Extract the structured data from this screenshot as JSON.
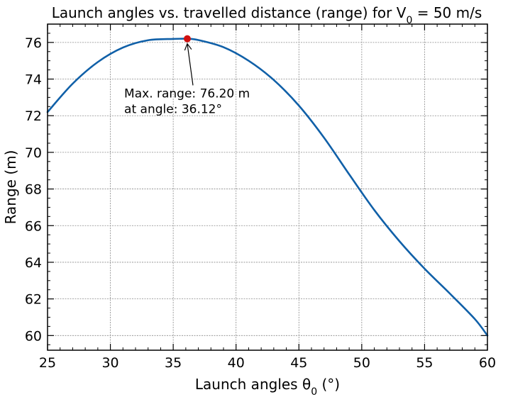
{
  "chart_data": {
    "type": "line",
    "title": "Launch angles vs. travelled distance (range) for V",
    "title_sub": "0",
    "title_tail": " = 50 m/s",
    "xlabel": "Launch angles θ",
    "xlabel_sub": "0",
    "xlabel_tail": " (°)",
    "ylabel": "Range (m)",
    "xlim": [
      25,
      60
    ],
    "ylim": [
      59.2,
      77.0
    ],
    "x_ticks": [
      25,
      30,
      35,
      40,
      45,
      50,
      55,
      60
    ],
    "y_ticks": [
      60,
      62,
      64,
      66,
      68,
      70,
      72,
      74,
      76
    ],
    "grid": true,
    "series": [
      {
        "color": "#1060a8",
        "x": [
          25,
          27,
          29,
          31,
          33,
          35,
          36.12,
          37,
          39,
          41,
          43,
          45,
          47,
          49,
          51,
          53,
          55,
          57,
          59,
          60
        ],
        "y": [
          72.2,
          73.75,
          74.93,
          75.72,
          76.12,
          76.19,
          76.2,
          76.13,
          75.74,
          75.0,
          73.95,
          72.55,
          70.8,
          68.8,
          66.85,
          65.15,
          63.65,
          62.3,
          60.9,
          60.0
        ]
      }
    ],
    "max_point": {
      "x": 36.12,
      "y": 76.2,
      "color": "#d01010"
    },
    "annotation": {
      "line1": "Max. range: 76.20 m",
      "line2": "at angle: 36.12°",
      "text_x": 31.1,
      "text_y": 73.0
    }
  }
}
